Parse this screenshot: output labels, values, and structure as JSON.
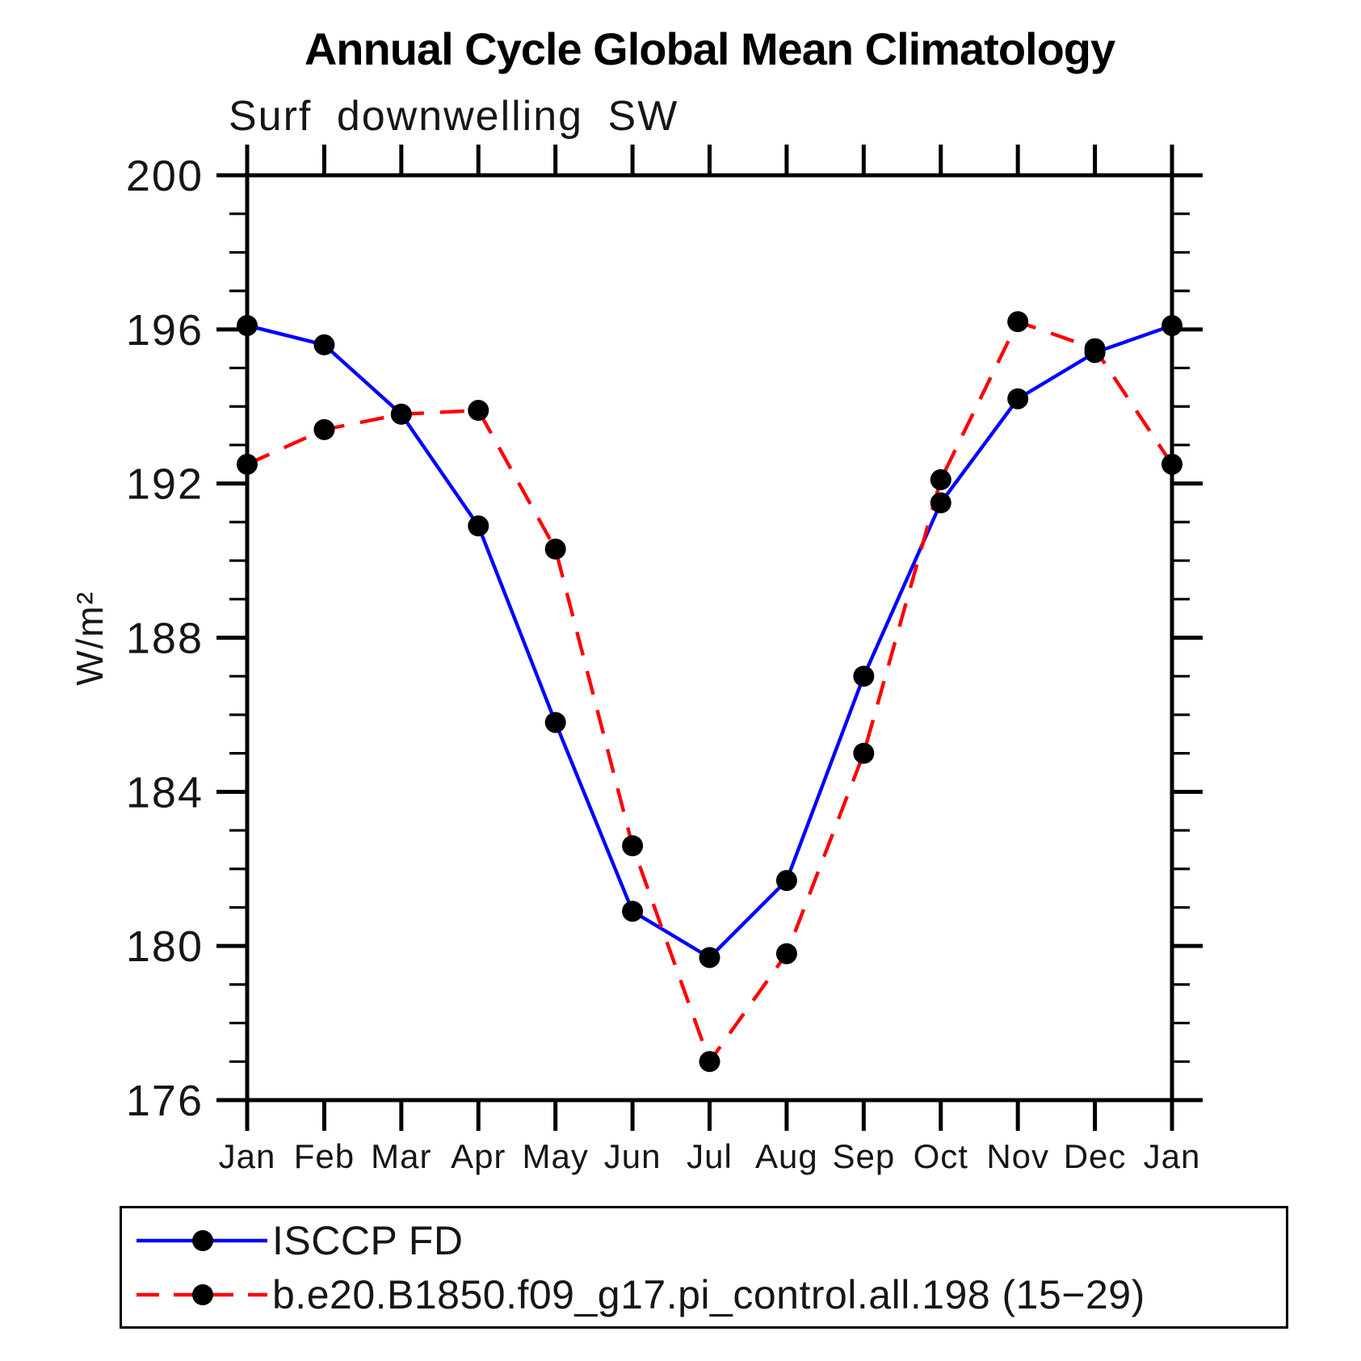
{
  "title": "Annual Cycle Global Mean Climatology",
  "subtitle": "Surf downwelling SW",
  "chart_data": {
    "type": "line",
    "title": "Annual Cycle Global Mean Climatology",
    "subtitle": "Surf downwelling SW",
    "ylabel": "W/m²",
    "xlabel": "",
    "x_categories": [
      "Jan",
      "Feb",
      "Mar",
      "Apr",
      "May",
      "Jun",
      "Jul",
      "Aug",
      "Sep",
      "Oct",
      "Nov",
      "Dec",
      "Jan"
    ],
    "ylim": [
      176,
      200
    ],
    "y_major_ticks": [
      176,
      180,
      184,
      188,
      192,
      196,
      200
    ],
    "y_minor_step": 1,
    "grid": "off",
    "legend_position": "bottom",
    "axis_color": "#000000",
    "series": [
      {
        "name": "ISCCP FD",
        "color": "#0000ff",
        "style": "solid",
        "marker": "circle",
        "marker_color": "#000000",
        "values": [
          196.1,
          195.6,
          193.8,
          190.9,
          185.8,
          180.9,
          179.7,
          181.7,
          187.0,
          191.5,
          194.2,
          195.4,
          196.1
        ]
      },
      {
        "name": "b.e20.B1850.f09_g17.pi_control.all.198 (15−29)",
        "color": "#ff0000",
        "style": "dashed",
        "marker": "circle",
        "marker_color": "#000000",
        "values": [
          192.5,
          193.4,
          193.8,
          193.9,
          190.3,
          182.6,
          177.0,
          179.8,
          185.0,
          192.1,
          196.2,
          195.5,
          192.5
        ]
      }
    ]
  }
}
